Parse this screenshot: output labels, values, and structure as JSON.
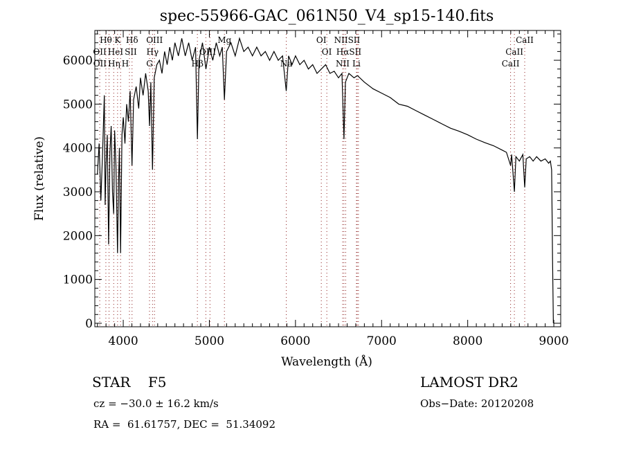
{
  "chart_data": {
    "type": "line",
    "title": "spec-55966-GAC_061N50_V4_sp15-140.fits",
    "xlabel": "Wavelength (Å)",
    "ylabel": "Flux (relative)",
    "xlim": [
      3670,
      9080
    ],
    "ylim": [
      -80,
      6680
    ],
    "xticks": [
      4000,
      5000,
      6000,
      7000,
      8000,
      9000
    ],
    "yticks": [
      0,
      1000,
      2000,
      3000,
      4000,
      5000,
      6000
    ],
    "grid": false,
    "series": [
      {
        "name": "flux",
        "points": [
          [
            3700,
            3400
          ],
          [
            3720,
            4100
          ],
          [
            3740,
            2800
          ],
          [
            3760,
            3900
          ],
          [
            3780,
            5200
          ],
          [
            3790,
            2700
          ],
          [
            3800,
            3600
          ],
          [
            3815,
            4300
          ],
          [
            3830,
            1800
          ],
          [
            3845,
            3900
          ],
          [
            3860,
            4500
          ],
          [
            3875,
            3000
          ],
          [
            3889,
            2500
          ],
          [
            3900,
            4400
          ],
          [
            3915,
            3600
          ],
          [
            3934,
            1600
          ],
          [
            3945,
            3200
          ],
          [
            3955,
            4000
          ],
          [
            3969,
            1600
          ],
          [
            3985,
            4300
          ],
          [
            4000,
            4700
          ],
          [
            4020,
            4100
          ],
          [
            4040,
            5000
          ],
          [
            4060,
            4600
          ],
          [
            4080,
            5300
          ],
          [
            4102,
            3600
          ],
          [
            4120,
            5100
          ],
          [
            4150,
            5400
          ],
          [
            4180,
            4900
          ],
          [
            4200,
            5600
          ],
          [
            4230,
            5200
          ],
          [
            4260,
            5700
          ],
          [
            4290,
            5300
          ],
          [
            4305,
            4500
          ],
          [
            4320,
            5500
          ],
          [
            4340,
            3500
          ],
          [
            4360,
            5600
          ],
          [
            4390,
            5900
          ],
          [
            4420,
            6000
          ],
          [
            4450,
            5700
          ],
          [
            4480,
            6200
          ],
          [
            4510,
            5900
          ],
          [
            4540,
            6300
          ],
          [
            4570,
            6000
          ],
          [
            4600,
            6400
          ],
          [
            4640,
            6100
          ],
          [
            4680,
            6500
          ],
          [
            4720,
            6100
          ],
          [
            4760,
            6400
          ],
          [
            4800,
            6000
          ],
          [
            4840,
            6300
          ],
          [
            4861,
            4200
          ],
          [
            4880,
            6000
          ],
          [
            4920,
            6400
          ],
          [
            4960,
            5800
          ],
          [
            5000,
            6300
          ],
          [
            5040,
            6000
          ],
          [
            5080,
            6400
          ],
          [
            5120,
            6100
          ],
          [
            5150,
            6300
          ],
          [
            5175,
            5100
          ],
          [
            5200,
            6200
          ],
          [
            5250,
            6400
          ],
          [
            5300,
            6100
          ],
          [
            5350,
            6500
          ],
          [
            5400,
            6200
          ],
          [
            5450,
            6300
          ],
          [
            5500,
            6100
          ],
          [
            5550,
            6300
          ],
          [
            5600,
            6100
          ],
          [
            5650,
            6200
          ],
          [
            5700,
            6000
          ],
          [
            5750,
            6200
          ],
          [
            5800,
            6000
          ],
          [
            5850,
            6100
          ],
          [
            5893,
            5300
          ],
          [
            5920,
            6100
          ],
          [
            5960,
            5900
          ],
          [
            6000,
            6100
          ],
          [
            6050,
            5900
          ],
          [
            6100,
            6000
          ],
          [
            6150,
            5800
          ],
          [
            6200,
            5900
          ],
          [
            6250,
            5700
          ],
          [
            6300,
            5800
          ],
          [
            6350,
            5900
          ],
          [
            6400,
            5700
          ],
          [
            6450,
            5750
          ],
          [
            6500,
            5600
          ],
          [
            6540,
            5700
          ],
          [
            6563,
            4200
          ],
          [
            6580,
            5500
          ],
          [
            6620,
            5700
          ],
          [
            6680,
            5600
          ],
          [
            6720,
            5650
          ],
          [
            6800,
            5500
          ],
          [
            6900,
            5350
          ],
          [
            7000,
            5250
          ],
          [
            7100,
            5150
          ],
          [
            7200,
            5000
          ],
          [
            7300,
            4950
          ],
          [
            7400,
            4850
          ],
          [
            7500,
            4750
          ],
          [
            7600,
            4650
          ],
          [
            7700,
            4550
          ],
          [
            7800,
            4450
          ],
          [
            7900,
            4380
          ],
          [
            8000,
            4300
          ],
          [
            8100,
            4200
          ],
          [
            8200,
            4120
          ],
          [
            8300,
            4050
          ],
          [
            8400,
            3950
          ],
          [
            8450,
            3900
          ],
          [
            8498,
            3600
          ],
          [
            8510,
            3850
          ],
          [
            8542,
            3000
          ],
          [
            8560,
            3800
          ],
          [
            8600,
            3700
          ],
          [
            8640,
            3850
          ],
          [
            8662,
            3100
          ],
          [
            8680,
            3750
          ],
          [
            8720,
            3800
          ],
          [
            8760,
            3700
          ],
          [
            8800,
            3800
          ],
          [
            8850,
            3700
          ],
          [
            8900,
            3750
          ],
          [
            8940,
            3650
          ],
          [
            8960,
            3700
          ],
          [
            8975,
            3500
          ],
          [
            8985,
            1500
          ],
          [
            8995,
            0
          ]
        ]
      }
    ],
    "line_markers": [
      {
        "label": "Hθ",
        "wl": 3798,
        "row": 0
      },
      {
        "label": "K",
        "wl": 3934,
        "row": 0
      },
      {
        "label": "Hδ",
        "wl": 4102,
        "row": 0
      },
      {
        "label": "OIII",
        "wl": 4363,
        "row": 0
      },
      {
        "label": "Mg",
        "wl": 5175,
        "row": 0
      },
      {
        "label": "OI",
        "wl": 6300,
        "row": 0
      },
      {
        "label": "NIISII",
        "wl": 6600,
        "row": 0
      },
      {
        "label": "CaII",
        "wl": 8662,
        "row": 0
      },
      {
        "label": "OII",
        "wl": 3727,
        "row": 1
      },
      {
        "label": "HeI",
        "wl": 3889,
        "row": 1
      },
      {
        "label": "SII",
        "wl": 4072,
        "row": 1
      },
      {
        "label": "Hγ",
        "wl": 4340,
        "row": 1
      },
      {
        "label": "OIII",
        "wl": 4980,
        "row": 1
      },
      {
        "label": "OI",
        "wl": 6364,
        "row": 1
      },
      {
        "label": "HαSII",
        "wl": 6620,
        "row": 1
      },
      {
        "label": "CaII",
        "wl": 8542,
        "row": 1
      },
      {
        "label": "OII",
        "wl": 3729,
        "row": 2
      },
      {
        "label": "Hη",
        "wl": 3835,
        "row": 2
      },
      {
        "label": "H",
        "wl": 3969,
        "row": 2
      },
      {
        "label": "G",
        "wl": 4305,
        "row": 2
      },
      {
        "label": "Hβ",
        "wl": 4861,
        "row": 2
      },
      {
        "label": "Na",
        "wl": 5893,
        "row": 2
      },
      {
        "label": "NII",
        "wl": 6548,
        "row": 2
      },
      {
        "label": "Li",
        "wl": 6708,
        "row": 2
      },
      {
        "label": "CaII",
        "wl": 8498,
        "row": 2
      }
    ],
    "marker_lines": [
      3727,
      3798,
      3835,
      3889,
      3934,
      3969,
      4072,
      4102,
      4305,
      4340,
      4363,
      4861,
      4959,
      5007,
      5175,
      5893,
      6300,
      6364,
      6548,
      6563,
      6583,
      6708,
      6717,
      6731,
      8498,
      8542,
      8662
    ]
  },
  "info": {
    "object": "STAR    F5",
    "cz": "cz = −30.0 ± 16.2 km/s",
    "coords": "RA =  61.61757, DEC =  51.34092",
    "survey": "LAMOST DR2",
    "obs_date": "Obs−Date: 20120208"
  }
}
